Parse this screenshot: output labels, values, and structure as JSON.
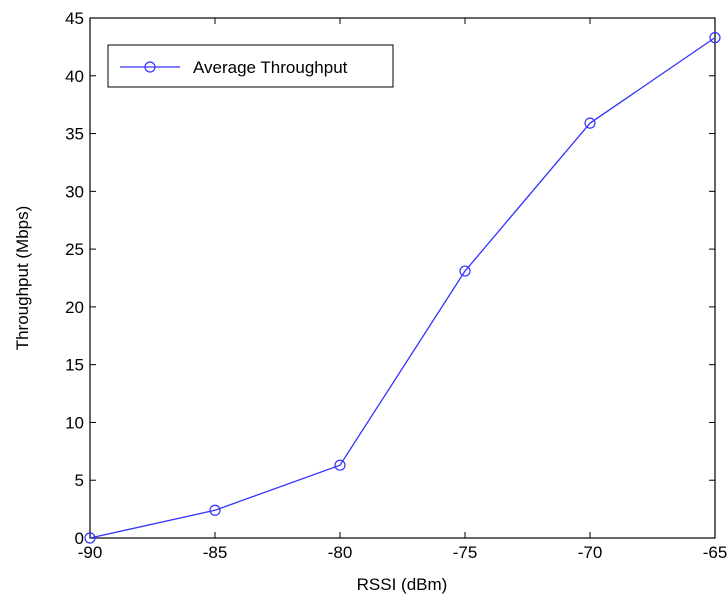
{
  "chart_data": {
    "type": "line",
    "title": "",
    "xlabel": "RSSI (dBm)",
    "ylabel": "Throughput (Mbps)",
    "xlim": [
      -90,
      -65
    ],
    "ylim": [
      0,
      45
    ],
    "xticks": [
      -90,
      -85,
      -80,
      -75,
      -70,
      -65
    ],
    "yticks": [
      0,
      5,
      10,
      15,
      20,
      25,
      30,
      35,
      40,
      45
    ],
    "grid": false,
    "legend_position": "top-left",
    "series": [
      {
        "name": "Average Throughput",
        "color": "#3333ff",
        "marker": "circle",
        "x": [
          -90,
          -85,
          -80,
          -75,
          -70,
          -65
        ],
        "y": [
          0,
          2.4,
          6.3,
          23.1,
          35.9,
          43.3
        ]
      }
    ]
  }
}
